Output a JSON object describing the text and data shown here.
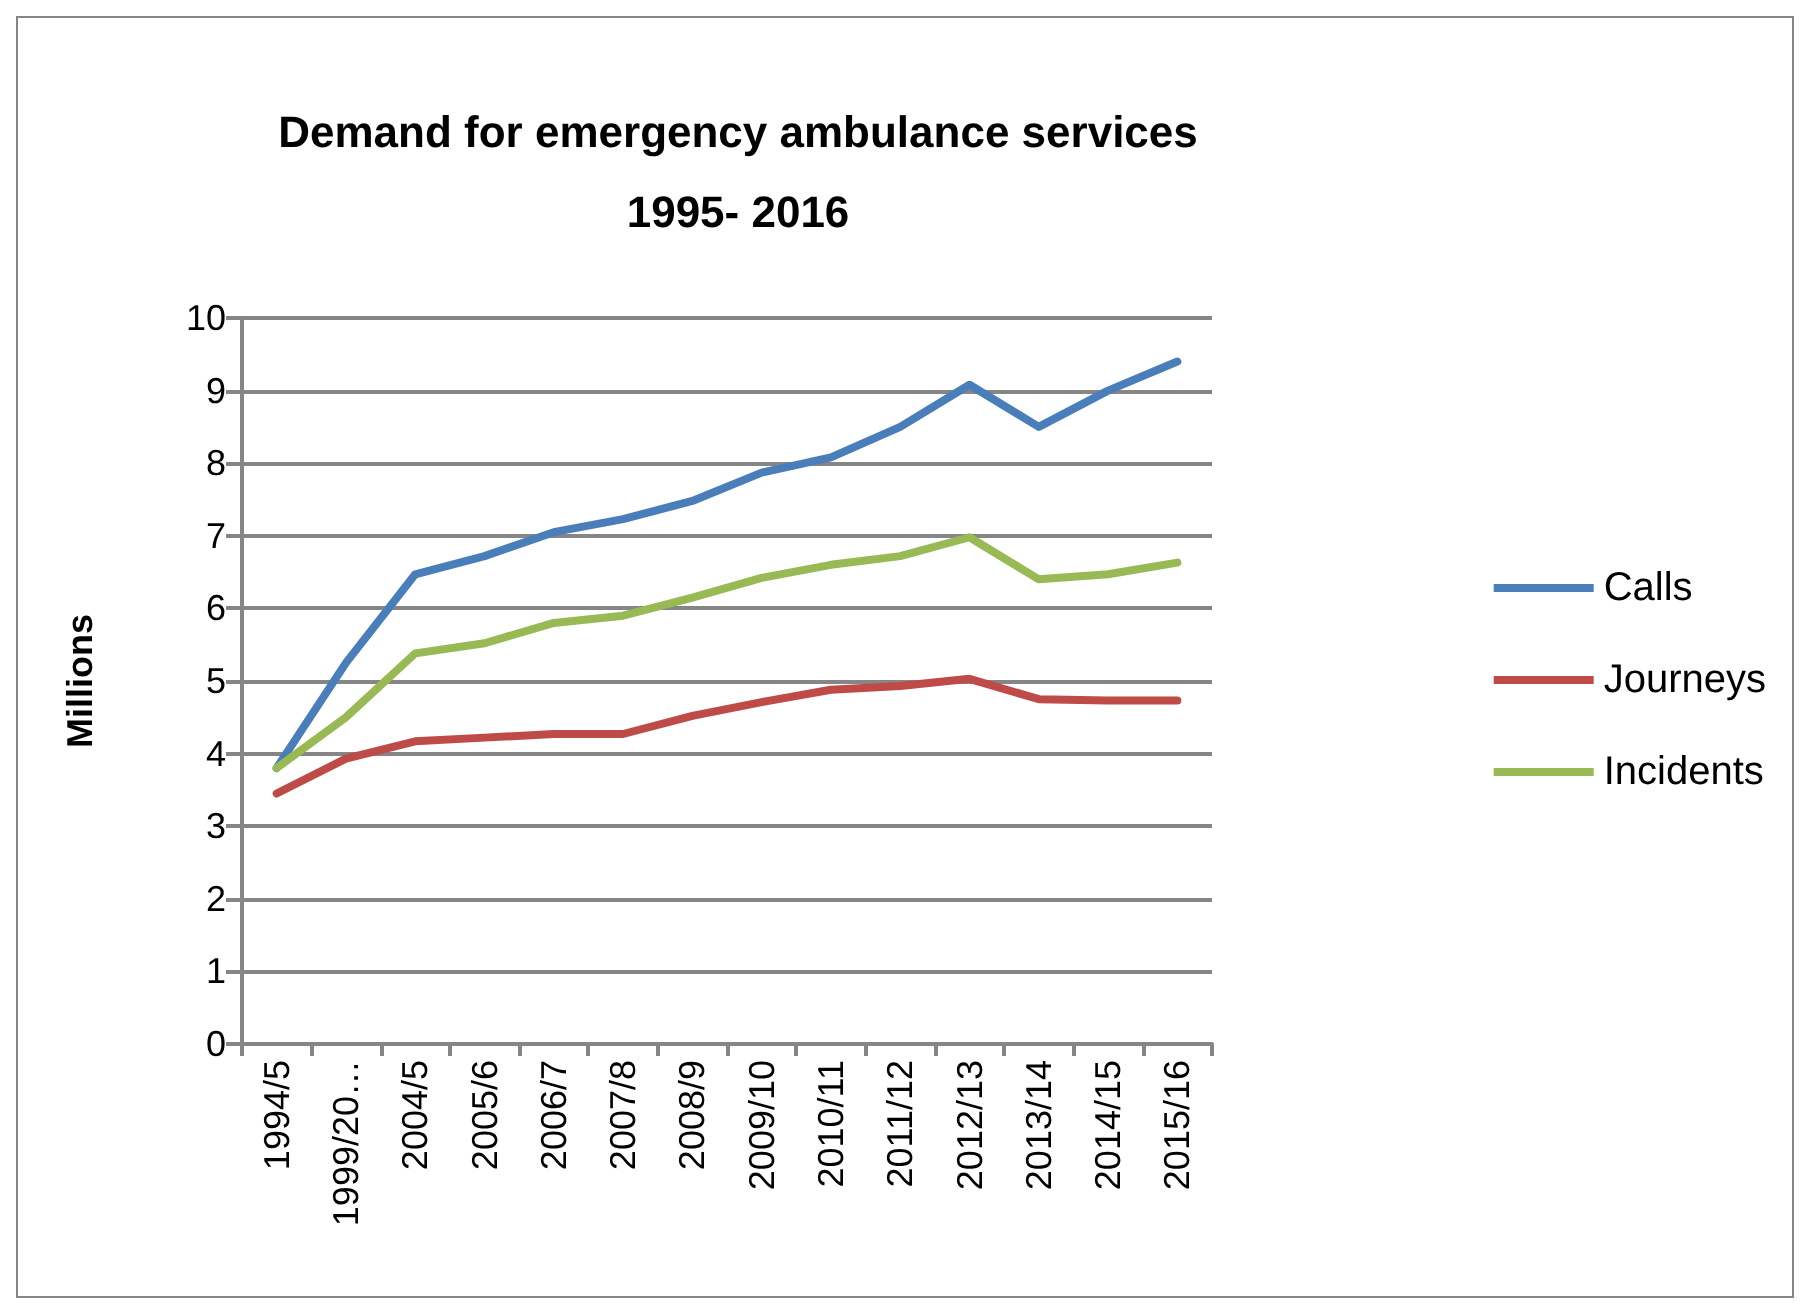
{
  "chart_data": {
    "type": "line",
    "title": "Demand for emergency ambulance services\n1995- 2016",
    "ylabel": "Millions",
    "categories": [
      "1994/5",
      "1999/20…",
      "2004/5",
      "2005/6",
      "2006/7",
      "2007/8",
      "2008/9",
      "2009/10",
      "2010/11",
      "2011/12",
      "2012/13",
      "2013/14",
      "2014/15",
      "2015/16"
    ],
    "series": [
      {
        "name": "Calls",
        "color": "#4a7ebb",
        "values": [
          3.8,
          5.25,
          6.47,
          6.72,
          7.05,
          7.23,
          7.48,
          7.87,
          8.08,
          8.5,
          9.08,
          8.5,
          9.0,
          9.4
        ]
      },
      {
        "name": "Journeys",
        "color": "#be4b48",
        "values": [
          3.45,
          3.93,
          4.17,
          4.22,
          4.27,
          4.27,
          4.52,
          4.71,
          4.88,
          4.93,
          5.03,
          4.75,
          4.73,
          4.73
        ]
      },
      {
        "name": "Incidents",
        "color": "#98b954",
        "values": [
          3.8,
          4.5,
          5.38,
          5.52,
          5.8,
          5.9,
          6.15,
          6.42,
          6.6,
          6.72,
          6.98,
          6.4,
          6.47,
          6.63
        ]
      }
    ],
    "ylim": [
      0,
      10
    ],
    "yticks": [
      0,
      1,
      2,
      3,
      4,
      5,
      6,
      7,
      8,
      9,
      10
    ],
    "grid": "y",
    "legend": "right",
    "marker": "none",
    "line_style": "solid"
  }
}
